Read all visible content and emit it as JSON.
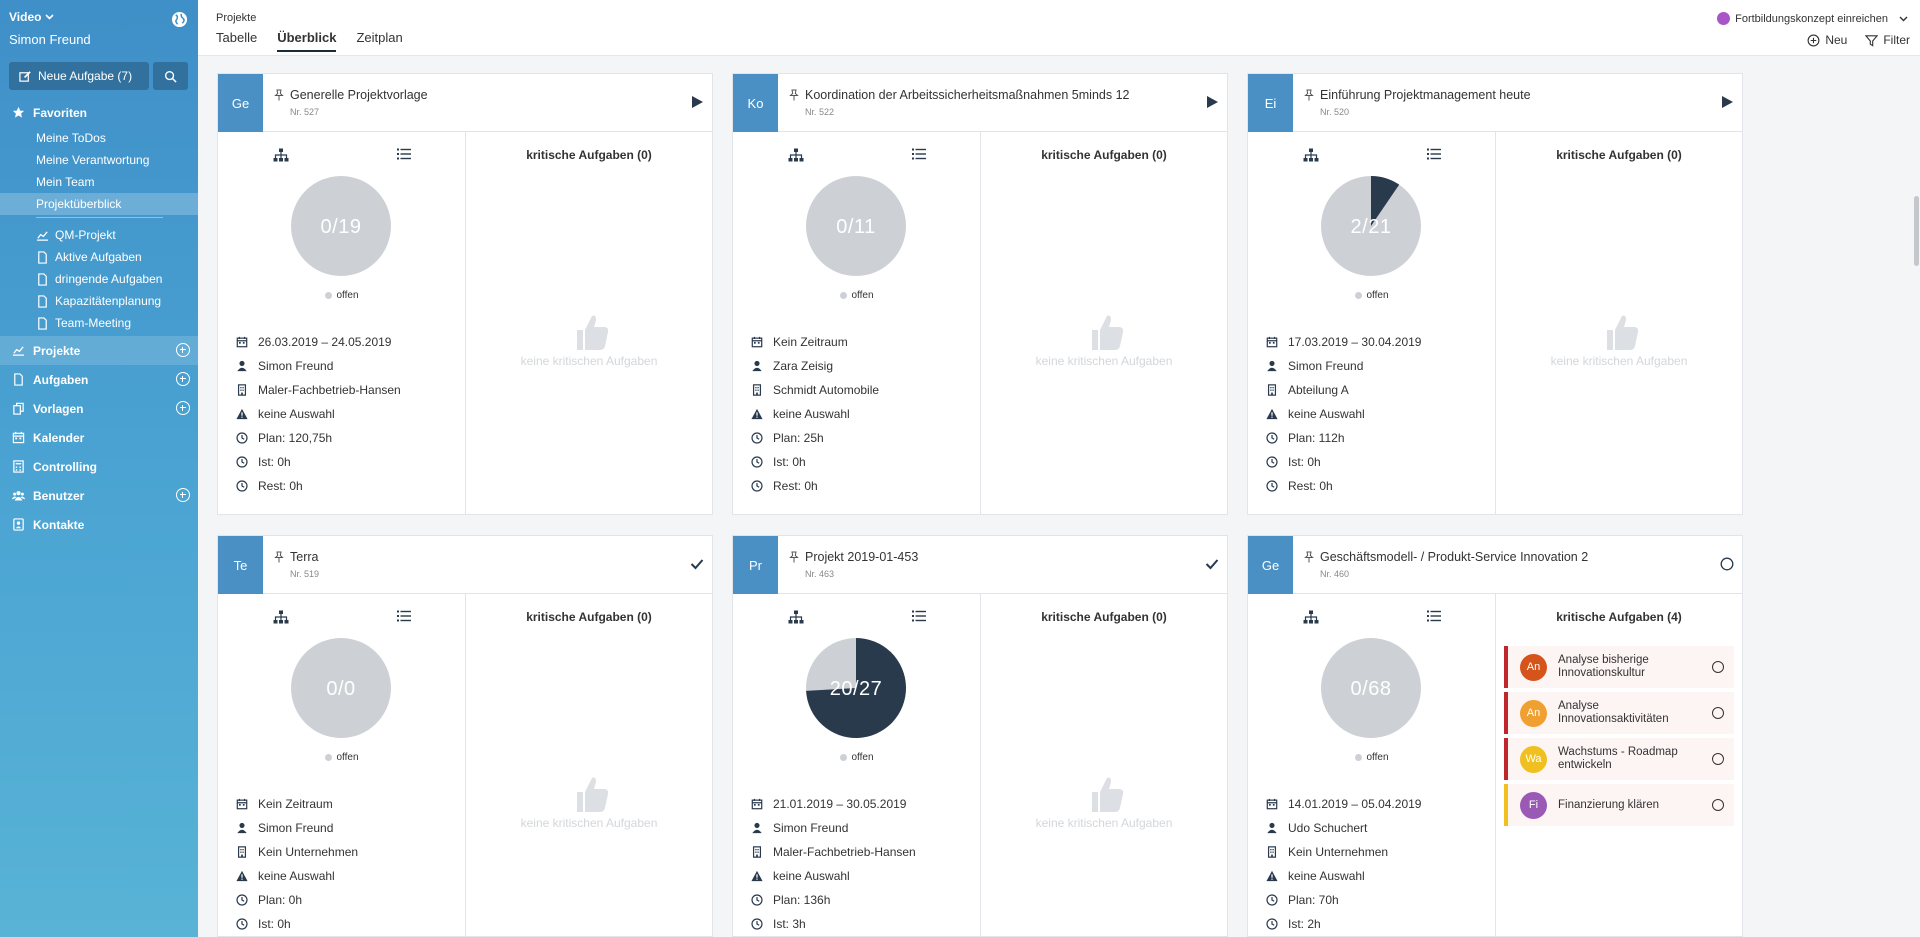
{
  "sidebar": {
    "workspace": "Video",
    "user": "Simon Freund",
    "new_task_label": "Neue Aufgabe  (7)",
    "favorites": {
      "label": "Favoriten",
      "items": [
        "Meine ToDos",
        "Meine Verantwortung",
        "Mein Team",
        "Projektüberblick"
      ],
      "saved": [
        {
          "label": "QM-Projekt",
          "icon": "chart-icon"
        },
        {
          "label": "Aktive Aufgaben",
          "icon": "document-icon"
        },
        {
          "label": "dringende Aufgaben",
          "icon": "document-icon"
        },
        {
          "label": "Kapazitätenplanung",
          "icon": "document-icon"
        },
        {
          "label": "Team-Meeting",
          "icon": "document-icon"
        }
      ]
    },
    "sections": [
      {
        "label": "Projekte",
        "icon": "chart-icon",
        "plus": true
      },
      {
        "label": "Aufgaben",
        "icon": "document-icon",
        "plus": true
      },
      {
        "label": "Vorlagen",
        "icon": "copy-icon",
        "plus": true
      },
      {
        "label": "Kalender",
        "icon": "calendar-icon",
        "plus": false
      },
      {
        "label": "Controlling",
        "icon": "calculator-icon",
        "plus": false
      },
      {
        "label": "Benutzer",
        "icon": "users-icon",
        "plus": true
      },
      {
        "label": "Kontakte",
        "icon": "contacts-icon",
        "plus": false
      }
    ]
  },
  "header": {
    "breadcrumb": "Projekte",
    "tabs": [
      "Tabelle",
      "Überblick",
      "Zeitplan"
    ],
    "active_tab": "Überblick",
    "notification": "Fortbildungskonzept einreichen",
    "actions": {
      "new": "Neu",
      "filter": "Filter"
    }
  },
  "legend_label": "offen",
  "critical_empty": "keine kritischen Aufgaben",
  "projects": [
    {
      "abbr": "Ge",
      "title": "Generelle Projektvorlage",
      "number": "Nr. 527",
      "status": "play",
      "done": 0,
      "total": 19,
      "progress": "0/19",
      "rows": [
        "26.03.2019 – 24.05.2019",
        "Simon Freund",
        "Maler-Fachbetrieb-Hansen",
        "keine Auswahl",
        "Plan: 120,75h",
        "Ist: 0h",
        "Rest: 0h"
      ],
      "critical": "kritische Aufgaben (0)",
      "tasks": []
    },
    {
      "abbr": "Ko",
      "title": "Koordination der Arbeitssicherheitsmaßnahmen 5minds 12",
      "number": "Nr. 522",
      "status": "play",
      "done": 0,
      "total": 11,
      "progress": "0/11",
      "rows": [
        "Kein Zeitraum",
        "Zara Zeisig",
        "Schmidt Automobile",
        "keine Auswahl",
        "Plan: 25h",
        "Ist: 0h",
        "Rest: 0h"
      ],
      "critical": "kritische Aufgaben (0)",
      "tasks": []
    },
    {
      "abbr": "Ei",
      "title": "Einführung Projektmanagement heute",
      "number": "Nr. 520",
      "status": "play",
      "done": 2,
      "total": 21,
      "progress": "2/21",
      "rows": [
        "17.03.2019 – 30.04.2019",
        "Simon Freund",
        "Abteilung A",
        "keine Auswahl",
        "Plan: 112h",
        "Ist: 0h",
        "Rest: 0h"
      ],
      "critical": "kritische Aufgaben (0)",
      "tasks": []
    },
    {
      "abbr": "Te",
      "title": "Terra",
      "number": "Nr. 519",
      "status": "check",
      "done": 0,
      "total": 0,
      "progress": "0/0",
      "rows": [
        "Kein Zeitraum",
        "Simon Freund",
        "Kein Unternehmen",
        "keine Auswahl",
        "Plan: 0h",
        "Ist: 0h"
      ],
      "critical": "kritische Aufgaben (0)",
      "tasks": []
    },
    {
      "abbr": "Pr",
      "title": "Projekt 2019-01-453",
      "number": "Nr. 463",
      "status": "check",
      "done": 20,
      "total": 27,
      "progress": "20/27",
      "rows": [
        "21.01.2019 – 30.05.2019",
        "Simon Freund",
        "Maler-Fachbetrieb-Hansen",
        "keine Auswahl",
        "Plan: 136h",
        "Ist: 3h"
      ],
      "critical": "kritische Aufgaben (0)",
      "tasks": []
    },
    {
      "abbr": "Ge",
      "title": "Geschäftsmodell- / Produkt-Service Innovation 2",
      "number": "Nr. 460",
      "status": "circle",
      "done": 0,
      "total": 68,
      "progress": "0/68",
      "rows": [
        "14.01.2019 – 05.04.2019",
        "Udo Schuchert",
        "Kein Unternehmen",
        "keine Auswahl",
        "Plan: 70h",
        "Ist: 2h"
      ],
      "critical": "kritische Aufgaben (4)",
      "tasks": [
        {
          "abbr": "An",
          "label": "Analyse bisherige Innovationskultur",
          "color": "#d4541c",
          "border": "#c0272d"
        },
        {
          "abbr": "An",
          "label": "Analyse Innovationsaktivitäten",
          "color": "#f0a030",
          "border": "#c0272d"
        },
        {
          "abbr": "Wa",
          "label": "Wachstums - Roadmap entwickeln",
          "color": "#f0c020",
          "border": "#c0272d"
        },
        {
          "abbr": "Fi",
          "label": "Finanzierung klären",
          "color": "#9b59b6",
          "border": "#f0c020"
        }
      ]
    }
  ],
  "colors": {
    "accent": "#4a90c4",
    "pie_done": "#2a3a4d",
    "pie_open": "#cdd1d6"
  }
}
